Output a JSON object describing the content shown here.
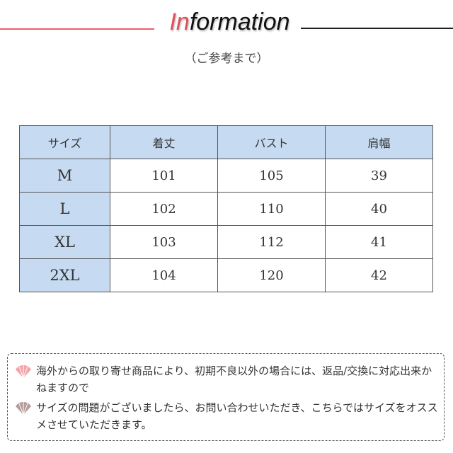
{
  "header": {
    "title_accent": "In",
    "title_rest": "formation",
    "subtitle": "（ご参考まで）"
  },
  "table": {
    "columns": [
      "サイズ",
      "着丈",
      "バスト",
      "肩幅"
    ],
    "rows": [
      [
        "M",
        "101",
        "105",
        "39"
      ],
      [
        "L",
        "102",
        "110",
        "40"
      ],
      [
        "XL",
        "103",
        "112",
        "41"
      ],
      [
        "2XL",
        "104",
        "120",
        "42"
      ]
    ]
  },
  "notes": [
    {
      "icon": "fan-icon",
      "color": "#f2a4a8",
      "text": "海外からの取り寄せ商品により、初期不良以外の場合には、返品/交換に対応出来かねますので"
    },
    {
      "icon": "fan-icon",
      "color": "#b59c9c",
      "text": "サイズの問題がございましたら、お問い合わせいただき、こちらではサイズをオススメさせていただきます。"
    }
  ],
  "colors": {
    "accent": "#e0505c",
    "header_bg": "#c6dbf1"
  }
}
